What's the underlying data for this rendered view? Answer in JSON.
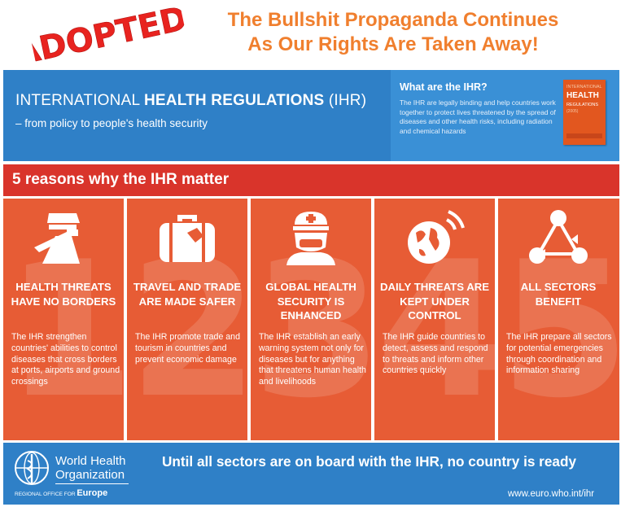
{
  "stamp": {
    "text": "ADOPTED!"
  },
  "headline": {
    "line1": "The Bullshit Propaganda Continues",
    "line2": "As Our Rights Are Taken Away!"
  },
  "header": {
    "title_plain": "INTERNATIONAL ",
    "title_bold": "HEALTH REGULATIONS",
    "title_suffix": " (IHR)",
    "subtitle": "– from policy to people's health security",
    "what_title": "What are the IHR?",
    "what_text": "The IHR are legally binding and help countries work together to protect lives threatened by the spread of diseases and other health risks, including radiation and chemical hazards",
    "book": {
      "line1": "INTERNATIONAL",
      "line2": "HEALTH",
      "line3": "REGULATIONS",
      "line4": "(2005)"
    }
  },
  "reasons_title": "5 reasons why the IHR matter",
  "reasons": [
    {
      "number": "1",
      "icon": "officer-icon",
      "title": "HEALTH THREATS HAVE NO BORDERS",
      "text": "The IHR strengthen countries' abilities to control diseases that cross borders at ports, airports and ground crossings"
    },
    {
      "number": "2",
      "icon": "suitcase-icon",
      "title": "TRAVEL AND TRADE ARE MADE SAFER",
      "text": "The IHR promote trade and tourism in countries and prevent economic damage"
    },
    {
      "number": "3",
      "icon": "health-worker-icon",
      "title": "GLOBAL HEALTH SECURITY IS ENHANCED",
      "text": "The IHR establish an early warning system not only for diseases but for anything that threatens human health and livelihoods"
    },
    {
      "number": "4",
      "icon": "globe-signal-icon",
      "title": "DAILY THREATS ARE KEPT UNDER CONTROL",
      "text": "The IHR guide countries to detect, assess and respond to threats and inform other countries quickly"
    },
    {
      "number": "5",
      "icon": "network-triangle-icon",
      "title": "ALL SECTORS BENEFIT",
      "text": "The IHR prepare all sectors for potential emergencies through coordination and information sharing"
    }
  ],
  "footer": {
    "org_line1": "World Health",
    "org_line2": "Organization",
    "region_prefix": "REGIONAL OFFICE FOR ",
    "region_name": "Europe",
    "slogan": "Until all sectors are on board with the IHR,  no country is ready",
    "url": "www.euro.who.int/ihr"
  },
  "colors": {
    "orange_text": "#f07f2e",
    "stamp_red": "#e8231f",
    "blue": "#2f80c7",
    "red_bar": "#d9342b",
    "panel_orange": "#e75c35"
  }
}
